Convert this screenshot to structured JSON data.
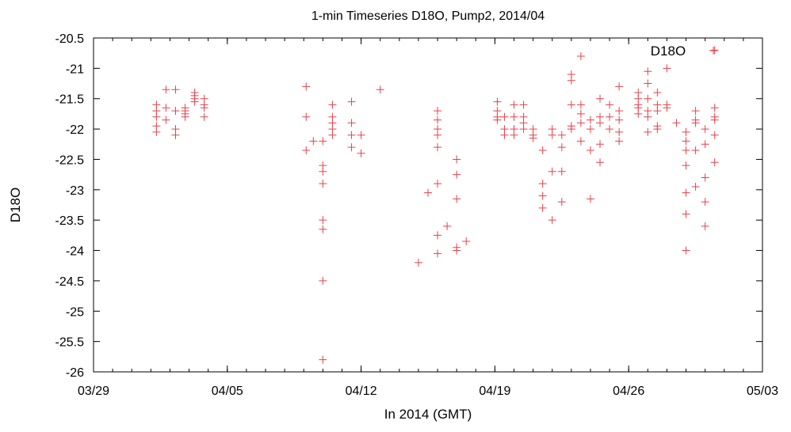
{
  "chart_data": {
    "type": "scatter",
    "title": "1-min Timeseries D18O, Pump2, 2014/04",
    "xlabel": "In 2014 (GMT)",
    "ylabel": "D18O",
    "xlim": [
      "2014-03-29",
      "2014-05-03"
    ],
    "ylim": [
      -26,
      -20.5
    ],
    "x_ticks": [
      {
        "date": "2014-03-29",
        "label": "03/29"
      },
      {
        "date": "2014-04-05",
        "label": "04/05"
      },
      {
        "date": "2014-04-12",
        "label": "04/12"
      },
      {
        "date": "2014-04-19",
        "label": "04/19"
      },
      {
        "date": "2014-04-26",
        "label": "04/26"
      },
      {
        "date": "2014-05-03",
        "label": "05/03"
      }
    ],
    "y_ticks": [
      -20.5,
      -21,
      -21.5,
      -22,
      -22.5,
      -23,
      -23.5,
      -24,
      -24.5,
      -25,
      -25.5,
      -26
    ],
    "y_tick_labels": [
      "-20.5",
      "-21",
      "-21.5",
      "-22",
      "-22.5",
      "-23",
      "-23.5",
      "-24",
      "-24.5",
      "-25",
      "-25.5",
      "-26"
    ],
    "grid": false,
    "legend_position": "top-right",
    "series": [
      {
        "name": "D18O",
        "color": "#e8414a",
        "marker": "plus",
        "points": [
          [
            "2014-04-01 07:00",
            -21.6
          ],
          [
            "2014-04-01 07:00",
            -21.7
          ],
          [
            "2014-04-01 07:00",
            -21.8
          ],
          [
            "2014-04-01 07:00",
            -21.95
          ],
          [
            "2014-04-01 07:00",
            -22.05
          ],
          [
            "2014-04-01 19:00",
            -21.35
          ],
          [
            "2014-04-01 19:00",
            -21.65
          ],
          [
            "2014-04-01 19:00",
            -21.85
          ],
          [
            "2014-04-02 07:00",
            -21.35
          ],
          [
            "2014-04-02 07:00",
            -21.7
          ],
          [
            "2014-04-02 07:00",
            -22.0
          ],
          [
            "2014-04-02 07:00",
            -22.1
          ],
          [
            "2014-04-02 19:00",
            -21.65
          ],
          [
            "2014-04-02 19:00",
            -21.7
          ],
          [
            "2014-04-02 19:00",
            -21.75
          ],
          [
            "2014-04-02 19:00",
            -21.8
          ],
          [
            "2014-04-03 07:00",
            -21.4
          ],
          [
            "2014-04-03 07:00",
            -21.45
          ],
          [
            "2014-04-03 07:00",
            -21.5
          ],
          [
            "2014-04-03 07:00",
            -21.55
          ],
          [
            "2014-04-03 19:00",
            -21.5
          ],
          [
            "2014-04-03 19:00",
            -21.6
          ],
          [
            "2014-04-03 19:00",
            -21.65
          ],
          [
            "2014-04-03 19:00",
            -21.8
          ],
          [
            "2014-04-09 03:00",
            -21.3
          ],
          [
            "2014-04-09 03:00",
            -21.8
          ],
          [
            "2014-04-09 03:00",
            -22.35
          ],
          [
            "2014-04-09 12:00",
            -22.2
          ],
          [
            "2014-04-10 00:00",
            -22.2
          ],
          [
            "2014-04-10 00:00",
            -22.6
          ],
          [
            "2014-04-10 00:00",
            -22.7
          ],
          [
            "2014-04-10 00:00",
            -22.9
          ],
          [
            "2014-04-10 00:00",
            -23.5
          ],
          [
            "2014-04-10 00:00",
            -23.65
          ],
          [
            "2014-04-10 00:00",
            -24.5
          ],
          [
            "2014-04-10 00:00",
            -25.8
          ],
          [
            "2014-04-10 12:00",
            -21.6
          ],
          [
            "2014-04-10 12:00",
            -21.8
          ],
          [
            "2014-04-10 12:00",
            -21.9
          ],
          [
            "2014-04-10 12:00",
            -22.0
          ],
          [
            "2014-04-10 12:00",
            -22.1
          ],
          [
            "2014-04-11 12:00",
            -21.55
          ],
          [
            "2014-04-11 12:00",
            -21.9
          ],
          [
            "2014-04-11 12:00",
            -22.1
          ],
          [
            "2014-04-11 12:00",
            -22.3
          ],
          [
            "2014-04-12 00:00",
            -22.1
          ],
          [
            "2014-04-12 00:00",
            -22.4
          ],
          [
            "2014-04-13 00:00",
            -21.35
          ],
          [
            "2014-04-15 00:00",
            -24.2
          ],
          [
            "2014-04-15 12:00",
            -23.05
          ],
          [
            "2014-04-16 00:00",
            -21.7
          ],
          [
            "2014-04-16 00:00",
            -21.85
          ],
          [
            "2014-04-16 00:00",
            -22.0
          ],
          [
            "2014-04-16 00:00",
            -22.1
          ],
          [
            "2014-04-16 00:00",
            -22.3
          ],
          [
            "2014-04-16 00:00",
            -22.9
          ],
          [
            "2014-04-16 00:00",
            -23.75
          ],
          [
            "2014-04-16 00:00",
            -24.05
          ],
          [
            "2014-04-16 12:00",
            -23.6
          ],
          [
            "2014-04-17 00:00",
            -22.5
          ],
          [
            "2014-04-17 00:00",
            -22.75
          ],
          [
            "2014-04-17 00:00",
            -23.15
          ],
          [
            "2014-04-17 00:00",
            -23.95
          ],
          [
            "2014-04-17 00:00",
            -24.0
          ],
          [
            "2014-04-17 12:00",
            -23.85
          ],
          [
            "2014-04-19 03:00",
            -21.55
          ],
          [
            "2014-04-19 03:00",
            -21.7
          ],
          [
            "2014-04-19 03:00",
            -21.8
          ],
          [
            "2014-04-19 03:00",
            -21.85
          ],
          [
            "2014-04-19 12:00",
            -21.8
          ],
          [
            "2014-04-19 12:00",
            -22.0
          ],
          [
            "2014-04-19 12:00",
            -22.1
          ],
          [
            "2014-04-20 00:00",
            -21.6
          ],
          [
            "2014-04-20 00:00",
            -21.8
          ],
          [
            "2014-04-20 00:00",
            -22.0
          ],
          [
            "2014-04-20 00:00",
            -22.1
          ],
          [
            "2014-04-20 12:00",
            -21.6
          ],
          [
            "2014-04-20 12:00",
            -21.8
          ],
          [
            "2014-04-20 12:00",
            -21.9
          ],
          [
            "2014-04-20 12:00",
            -22.0
          ],
          [
            "2014-04-21 00:00",
            -22.0
          ],
          [
            "2014-04-21 00:00",
            -22.1
          ],
          [
            "2014-04-21 00:00",
            -22.15
          ],
          [
            "2014-04-21 12:00",
            -22.35
          ],
          [
            "2014-04-21 12:00",
            -22.9
          ],
          [
            "2014-04-21 12:00",
            -23.1
          ],
          [
            "2014-04-21 12:00",
            -23.3
          ],
          [
            "2014-04-22 00:00",
            -22.0
          ],
          [
            "2014-04-22 00:00",
            -22.1
          ],
          [
            "2014-04-22 00:00",
            -22.7
          ],
          [
            "2014-04-22 00:00",
            -23.5
          ],
          [
            "2014-04-22 12:00",
            -22.1
          ],
          [
            "2014-04-22 12:00",
            -22.3
          ],
          [
            "2014-04-22 12:00",
            -22.7
          ],
          [
            "2014-04-22 12:00",
            -23.2
          ],
          [
            "2014-04-23 00:00",
            -21.1
          ],
          [
            "2014-04-23 00:00",
            -21.2
          ],
          [
            "2014-04-23 00:00",
            -21.6
          ],
          [
            "2014-04-23 00:00",
            -21.95
          ],
          [
            "2014-04-23 00:00",
            -22.0
          ],
          [
            "2014-04-23 12:00",
            -20.8
          ],
          [
            "2014-04-23 12:00",
            -21.6
          ],
          [
            "2014-04-23 12:00",
            -21.75
          ],
          [
            "2014-04-23 12:00",
            -21.9
          ],
          [
            "2014-04-23 12:00",
            -22.2
          ],
          [
            "2014-04-24 00:00",
            -21.85
          ],
          [
            "2014-04-24 00:00",
            -22.0
          ],
          [
            "2014-04-24 00:00",
            -22.35
          ],
          [
            "2014-04-24 00:00",
            -23.15
          ],
          [
            "2014-04-24 12:00",
            -21.5
          ],
          [
            "2014-04-24 12:00",
            -21.8
          ],
          [
            "2014-04-24 12:00",
            -21.9
          ],
          [
            "2014-04-24 12:00",
            -22.25
          ],
          [
            "2014-04-24 12:00",
            -22.55
          ],
          [
            "2014-04-25 00:00",
            -21.6
          ],
          [
            "2014-04-25 00:00",
            -21.8
          ],
          [
            "2014-04-25 00:00",
            -22.0
          ],
          [
            "2014-04-25 12:00",
            -21.3
          ],
          [
            "2014-04-25 12:00",
            -21.7
          ],
          [
            "2014-04-25 12:00",
            -21.85
          ],
          [
            "2014-04-25 12:00",
            -22.05
          ],
          [
            "2014-04-25 12:00",
            -22.2
          ],
          [
            "2014-04-26 12:00",
            -21.4
          ],
          [
            "2014-04-26 12:00",
            -21.5
          ],
          [
            "2014-04-26 12:00",
            -21.6
          ],
          [
            "2014-04-26 12:00",
            -21.65
          ],
          [
            "2014-04-26 12:00",
            -21.75
          ],
          [
            "2014-04-27 00:00",
            -21.05
          ],
          [
            "2014-04-27 00:00",
            -21.25
          ],
          [
            "2014-04-27 00:00",
            -21.5
          ],
          [
            "2014-04-27 00:00",
            -21.7
          ],
          [
            "2014-04-27 00:00",
            -21.8
          ],
          [
            "2014-04-27 00:00",
            -22.05
          ],
          [
            "2014-04-27 12:00",
            -21.4
          ],
          [
            "2014-04-27 12:00",
            -21.6
          ],
          [
            "2014-04-27 12:00",
            -21.7
          ],
          [
            "2014-04-27 12:00",
            -21.95
          ],
          [
            "2014-04-27 12:00",
            -22.0
          ],
          [
            "2014-04-28 00:00",
            -21.0
          ],
          [
            "2014-04-28 00:00",
            -21.6
          ],
          [
            "2014-04-28 00:00",
            -21.65
          ],
          [
            "2014-04-28 12:00",
            -21.9
          ],
          [
            "2014-04-29 00:00",
            -22.05
          ],
          [
            "2014-04-29 00:00",
            -22.2
          ],
          [
            "2014-04-29 00:00",
            -22.35
          ],
          [
            "2014-04-29 00:00",
            -22.6
          ],
          [
            "2014-04-29 00:00",
            -23.05
          ],
          [
            "2014-04-29 00:00",
            -23.4
          ],
          [
            "2014-04-29 00:00",
            -24.0
          ],
          [
            "2014-04-29 12:00",
            -21.7
          ],
          [
            "2014-04-29 12:00",
            -21.85
          ],
          [
            "2014-04-29 12:00",
            -21.9
          ],
          [
            "2014-04-29 12:00",
            -22.35
          ],
          [
            "2014-04-29 12:00",
            -22.95
          ],
          [
            "2014-04-30 00:00",
            -22.0
          ],
          [
            "2014-04-30 00:00",
            -22.25
          ],
          [
            "2014-04-30 00:00",
            -22.8
          ],
          [
            "2014-04-30 00:00",
            -23.2
          ],
          [
            "2014-04-30 00:00",
            -23.6
          ],
          [
            "2014-04-30 12:00",
            -20.7
          ],
          [
            "2014-04-30 12:00",
            -21.65
          ],
          [
            "2014-04-30 12:00",
            -21.8
          ],
          [
            "2014-04-30 12:00",
            -21.85
          ],
          [
            "2014-04-30 12:00",
            -22.1
          ],
          [
            "2014-04-30 12:00",
            -22.55
          ]
        ]
      }
    ]
  }
}
